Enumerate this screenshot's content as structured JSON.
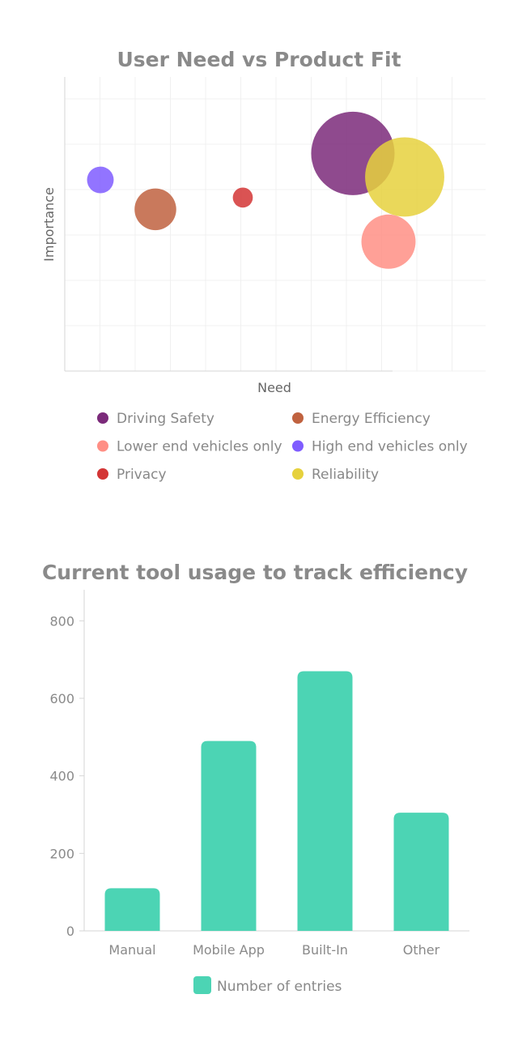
{
  "charts": [
    {
      "chart_data": {
        "type": "scatter",
        "variant": "bubble",
        "title": "User Need vs Product Fit",
        "xlabel": "Need",
        "ylabel": "Importance",
        "xlim": [
          0,
          13
        ],
        "ylim": [
          0,
          10
        ],
        "grid": true,
        "legend_position": "bottom",
        "series": [
          {
            "name": "Driving Safety",
            "color": "#7b2a7a",
            "points": [
              {
                "x": 8.9,
                "y": 7.4,
                "size": 10
              }
            ]
          },
          {
            "name": "Energy Efficiency",
            "color": "#c0623f",
            "points": [
              {
                "x": 2.8,
                "y": 5.5,
                "size": 5
              }
            ]
          },
          {
            "name": "Lower end vehicles only",
            "color": "#ff8f85",
            "points": [
              {
                "x": 10.0,
                "y": 4.4,
                "size": 6.5
              }
            ]
          },
          {
            "name": "High end vehicles only",
            "color": "#7f5cff",
            "points": [
              {
                "x": 1.1,
                "y": 6.5,
                "size": 3.2
              }
            ]
          },
          {
            "name": "Privacy",
            "color": "#d33535",
            "points": [
              {
                "x": 5.5,
                "y": 5.9,
                "size": 2.4
              }
            ]
          },
          {
            "name": "Reliability",
            "color": "#e6d13d",
            "points": [
              {
                "x": 10.5,
                "y": 6.6,
                "size": 9.5
              }
            ]
          }
        ]
      }
    },
    {
      "chart_data": {
        "type": "bar",
        "title": "Current tool usage to track efficiency",
        "xlabel": "",
        "ylabel": "",
        "categories": [
          "Manual",
          "Mobile App",
          "Built-In",
          "Other"
        ],
        "ylim": [
          0,
          880
        ],
        "yticks": [
          0,
          200,
          400,
          600,
          800
        ],
        "legend_position": "bottom",
        "series": [
          {
            "name": "Number of entries",
            "color": "#4cd4b4",
            "values": [
              110,
              490,
              670,
              305
            ]
          }
        ]
      }
    }
  ]
}
